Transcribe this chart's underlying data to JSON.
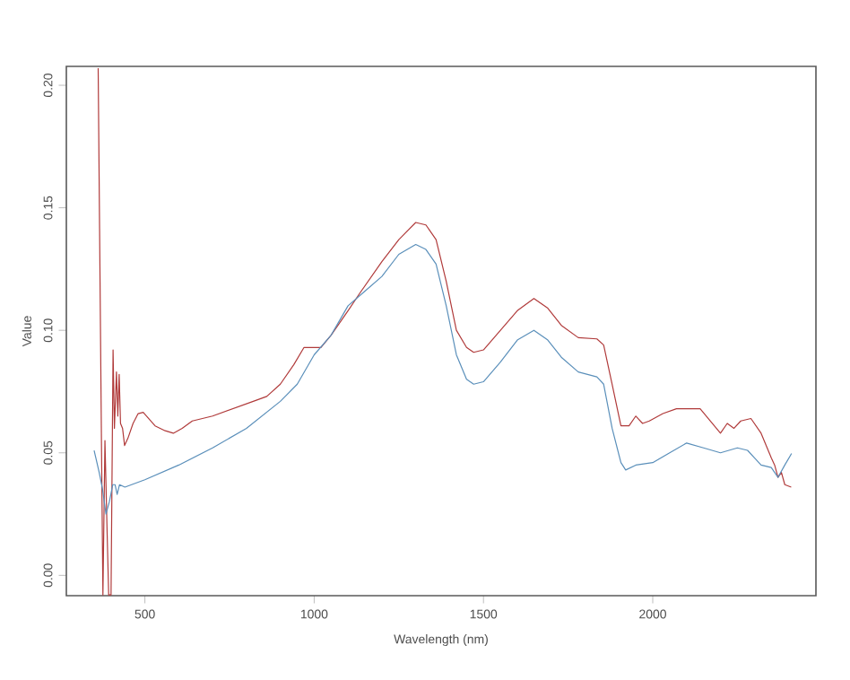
{
  "chart_data": {
    "type": "line",
    "xlabel": "Wavelength (nm)",
    "ylabel": "Value",
    "xlim": [
      268,
      2482
    ],
    "ylim": [
      -0.0083,
      0.2077
    ],
    "xticks": [
      500,
      1000,
      1500,
      2000
    ],
    "yticks": [
      {
        "value": 0,
        "label": "0.00"
      },
      {
        "value": 0.05,
        "label": "0.05"
      },
      {
        "value": 0.1,
        "label": "0.10"
      },
      {
        "value": 0.15,
        "label": "0.15"
      },
      {
        "value": 0.2,
        "label": "0.20"
      }
    ],
    "grid": false,
    "legend": false,
    "marker": "none",
    "line_style": "solid",
    "series": [
      {
        "color": "#b03a3a",
        "x": [
          362,
          372,
          376,
          382,
          388,
          393,
          400,
          406,
          410,
          416,
          420,
          424,
          428,
          434,
          440,
          450,
          465,
          480,
          495,
          530,
          560,
          584,
          610,
          640,
          700,
          760,
          820,
          860,
          900,
          940,
          970,
          1000,
          1020,
          1050,
          1100,
          1134,
          1200,
          1250,
          1300,
          1330,
          1360,
          1390,
          1420,
          1450,
          1471,
          1500,
          1550,
          1600,
          1649,
          1690,
          1730,
          1780,
          1835,
          1855,
          1880,
          1906,
          1930,
          1950,
          1970,
          1990,
          2030,
          2070,
          2100,
          2140,
          2170,
          2200,
          2220,
          2240,
          2260,
          2290,
          2320,
          2350,
          2360,
          2370,
          2380,
          2390,
          2409
        ],
        "values": [
          0.207,
          0.05,
          -0.008,
          0.055,
          0.02,
          -0.008,
          -0.008,
          0.092,
          0.06,
          0.083,
          0.065,
          0.082,
          0.062,
          0.06,
          0.053,
          0.056,
          0.062,
          0.066,
          0.0665,
          0.061,
          0.059,
          0.058,
          0.06,
          0.063,
          0.065,
          0.068,
          0.071,
          0.073,
          0.078,
          0.086,
          0.093,
          0.093,
          0.093,
          0.098,
          0.108,
          0.115,
          0.128,
          0.137,
          0.144,
          0.143,
          0.137,
          0.12,
          0.1,
          0.093,
          0.091,
          0.092,
          0.1,
          0.108,
          0.113,
          0.109,
          0.102,
          0.097,
          0.0965,
          0.094,
          0.078,
          0.061,
          0.061,
          0.065,
          0.062,
          0.063,
          0.066,
          0.068,
          0.068,
          0.068,
          0.063,
          0.058,
          0.062,
          0.06,
          0.063,
          0.064,
          0.058,
          0.048,
          0.045,
          0.04,
          0.042,
          0.037,
          0.036
        ]
      },
      {
        "color": "#5a8fba",
        "x": [
          350,
          365,
          375,
          385,
          395,
          405,
          412,
          418,
          425,
          441,
          500,
          600,
          700,
          800,
          900,
          950,
          1000,
          1050,
          1100,
          1150,
          1200,
          1250,
          1300,
          1330,
          1360,
          1390,
          1420,
          1450,
          1471,
          1500,
          1550,
          1600,
          1649,
          1690,
          1730,
          1780,
          1835,
          1855,
          1880,
          1906,
          1920,
          1950,
          2000,
          2050,
          2100,
          2150,
          2200,
          2250,
          2280,
          2320,
          2350,
          2370,
          2390,
          2410
        ],
        "values": [
          0.051,
          0.042,
          0.035,
          0.025,
          0.03,
          0.037,
          0.037,
          0.033,
          0.037,
          0.036,
          0.039,
          0.045,
          0.052,
          0.06,
          0.071,
          0.078,
          0.09,
          0.098,
          0.11,
          0.116,
          0.122,
          0.131,
          0.135,
          0.133,
          0.127,
          0.11,
          0.09,
          0.08,
          0.078,
          0.079,
          0.087,
          0.096,
          0.1,
          0.096,
          0.089,
          0.083,
          0.081,
          0.078,
          0.06,
          0.046,
          0.043,
          0.045,
          0.046,
          0.05,
          0.054,
          0.052,
          0.05,
          0.052,
          0.051,
          0.045,
          0.044,
          0.04,
          0.045,
          0.0497
        ]
      }
    ]
  }
}
